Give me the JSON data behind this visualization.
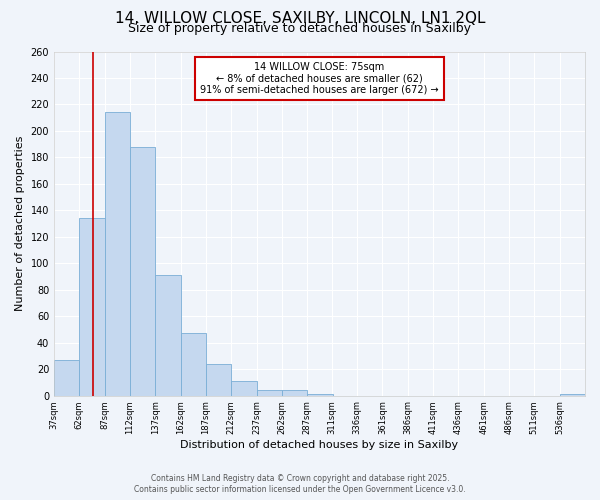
{
  "title_line1": "14, WILLOW CLOSE, SAXILBY, LINCOLN, LN1 2QL",
  "title_line2": "Size of property relative to detached houses in Saxilby",
  "xlabel": "Distribution of detached houses by size in Saxilby",
  "ylabel": "Number of detached properties",
  "bins_left": [
    37,
    62,
    87,
    112,
    137,
    162,
    187,
    212,
    237,
    262,
    287,
    311,
    336,
    361,
    386,
    411,
    436,
    461,
    486,
    511,
    536
  ],
  "bin_width": 25,
  "heights": [
    27,
    134,
    214,
    188,
    91,
    47,
    24,
    11,
    4,
    4,
    1,
    0,
    0,
    0,
    0,
    0,
    0,
    0,
    0,
    0,
    1
  ],
  "bar_color": "#c5d8ef",
  "bar_edge_color": "#7aaed6",
  "property_size": 75,
  "vline_color": "#cc0000",
  "annotation_text": "14 WILLOW CLOSE: 75sqm\n← 8% of detached houses are smaller (62)\n91% of semi-detached houses are larger (672) →",
  "annotation_box_edgecolor": "#cc0000",
  "ylim_max": 260,
  "yticks": [
    0,
    20,
    40,
    60,
    80,
    100,
    120,
    140,
    160,
    180,
    200,
    220,
    240,
    260
  ],
  "tick_labels": [
    "37sqm",
    "62sqm",
    "87sqm",
    "112sqm",
    "137sqm",
    "162sqm",
    "187sqm",
    "212sqm",
    "237sqm",
    "262sqm",
    "287sqm",
    "311sqm",
    "336sqm",
    "361sqm",
    "386sqm",
    "411sqm",
    "436sqm",
    "461sqm",
    "486sqm",
    "511sqm",
    "536sqm"
  ],
  "bg_color": "#f0f4fa",
  "grid_color": "#ffffff",
  "footer_line1": "Contains HM Land Registry data © Crown copyright and database right 2025.",
  "footer_line2": "Contains public sector information licensed under the Open Government Licence v3.0."
}
